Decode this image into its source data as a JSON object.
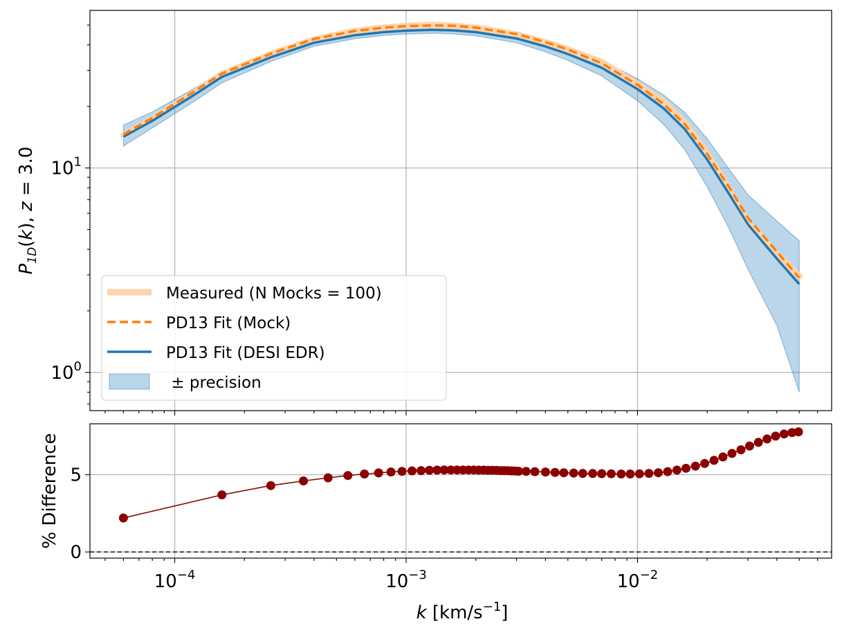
{
  "chart_data": [
    {
      "panel": "top",
      "type": "line",
      "xscale": "log",
      "yscale": "log",
      "xlim": [
        4.3e-05,
        0.069
      ],
      "ylim": [
        0.65,
        59
      ],
      "grid": true,
      "ylabel": "P_1D(k), z = 3.0",
      "xlabel": "",
      "yticks": [
        {
          "base": "10",
          "exp": "0",
          "value": 1
        },
        {
          "base": "10",
          "exp": "1",
          "value": 10
        }
      ],
      "legend_placement": "lower-left",
      "series": [
        {
          "name": "Measured (N Mocks = 100)",
          "style": "thick-light",
          "color": "#ffd3ab",
          "x": [
            6e-05,
            8e-05,
            0.00012,
            0.00016,
            0.00026,
            0.0004,
            0.0006,
            0.0008,
            0.001,
            0.0013,
            0.0016,
            0.002,
            0.003,
            0.004,
            0.005,
            0.007,
            0.01,
            0.013,
            0.016,
            0.02,
            0.025,
            0.03,
            0.04,
            0.05
          ],
          "y": [
            14.4,
            17.4,
            23.2,
            28.8,
            36.0,
            42.5,
            46.8,
            48.6,
            49.5,
            50.2,
            49.5,
            48.6,
            45.0,
            41.2,
            38.0,
            33.0,
            25.7,
            21.0,
            16.6,
            11.8,
            7.8,
            5.4,
            3.8,
            2.95
          ]
        },
        {
          "name": "PD13 Fit (Mock)",
          "style": "dashed",
          "color": "#ff7f0e",
          "x": [
            6e-05,
            8e-05,
            0.00012,
            0.00016,
            0.00026,
            0.0004,
            0.0006,
            0.0008,
            0.001,
            0.0013,
            0.0016,
            0.002,
            0.003,
            0.004,
            0.005,
            0.007,
            0.01,
            0.013,
            0.016,
            0.02,
            0.025,
            0.03,
            0.04,
            0.05
          ],
          "y": [
            14.6,
            17.6,
            23.5,
            29.0,
            36.2,
            42.8,
            46.8,
            48.6,
            49.4,
            49.8,
            49.6,
            48.6,
            45.2,
            41.3,
            38.0,
            32.5,
            25.5,
            20.5,
            16.4,
            11.7,
            8.0,
            5.7,
            3.9,
            2.9
          ]
        },
        {
          "name": "PD13 Fit (DESI EDR)",
          "style": "solid",
          "color": "#1f77b4",
          "x": [
            6e-05,
            8e-05,
            0.00012,
            0.00016,
            0.00026,
            0.0004,
            0.0006,
            0.0008,
            0.001,
            0.0013,
            0.0016,
            0.002,
            0.003,
            0.004,
            0.005,
            0.007,
            0.01,
            0.013,
            0.016,
            0.02,
            0.025,
            0.03,
            0.04,
            0.05
          ],
          "y": [
            14.2,
            17.0,
            22.6,
            27.9,
            34.8,
            41.0,
            44.6,
            46.2,
            47.0,
            47.4,
            47.1,
            46.2,
            43.0,
            39.3,
            36.1,
            30.9,
            24.3,
            19.5,
            15.5,
            11.0,
            7.4,
            5.3,
            3.6,
            2.7
          ]
        },
        {
          "name": "± precision",
          "style": "band",
          "color": "#1f77b4",
          "x": [
            6e-05,
            8e-05,
            0.00012,
            0.00016,
            0.00026,
            0.0004,
            0.0006,
            0.0008,
            0.001,
            0.0013,
            0.0016,
            0.002,
            0.003,
            0.004,
            0.005,
            0.007,
            0.01,
            0.013,
            0.016,
            0.02,
            0.025,
            0.03,
            0.04,
            0.05
          ],
          "y_low": [
            12.8,
            15.7,
            21.0,
            26.1,
            33.2,
            39.4,
            42.9,
            44.5,
            45.2,
            45.6,
            45.3,
            44.3,
            41.0,
            37.0,
            33.6,
            28.2,
            21.3,
            16.3,
            12.3,
            8.1,
            5.0,
            3.2,
            1.7,
            0.8
          ],
          "y_high": [
            16.2,
            18.8,
            24.3,
            29.6,
            36.5,
            42.7,
            46.3,
            47.9,
            48.8,
            49.2,
            48.9,
            48.1,
            45.0,
            41.6,
            38.6,
            33.6,
            27.3,
            22.7,
            18.7,
            13.9,
            9.8,
            7.4,
            5.5,
            4.4
          ]
        }
      ]
    },
    {
      "panel": "bottom",
      "type": "scatter",
      "xscale": "log",
      "yscale": "linear",
      "xlim": [
        4.3e-05,
        0.069
      ],
      "ylim": [
        -0.4,
        8.3
      ],
      "grid": true,
      "ylabel": "% Difference",
      "xlabel": "k [km/s⁻¹]",
      "yticks": [
        0,
        5
      ],
      "xticks": [
        {
          "base": "10",
          "exp": "−4",
          "value": 0.0001
        },
        {
          "base": "10",
          "exp": "−3",
          "value": 0.001
        },
        {
          "base": "10",
          "exp": "−2",
          "value": 0.01
        }
      ],
      "reference_line": {
        "y": 0,
        "style": "dashed",
        "color": "#000000"
      },
      "series": [
        {
          "color": "#8b0000",
          "x": [
            6e-05,
            0.00016,
            0.00026,
            0.00036,
            0.00046,
            0.00056,
            0.00066,
            0.00076,
            0.00086,
            0.00096,
            0.00106,
            0.00116,
            0.00126,
            0.00136,
            0.00146,
            0.00156,
            0.00166,
            0.00176,
            0.00186,
            0.00196,
            0.00206,
            0.00216,
            0.00226,
            0.00236,
            0.00246,
            0.00256,
            0.00266,
            0.00276,
            0.00286,
            0.00296,
            0.00306,
            0.0033,
            0.0036,
            0.004,
            0.0044,
            0.0048,
            0.0053,
            0.0058,
            0.0064,
            0.007,
            0.0077,
            0.0085,
            0.0093,
            0.0102,
            0.0112,
            0.0123,
            0.0135,
            0.0148,
            0.0162,
            0.0178,
            0.0195,
            0.0214,
            0.0234,
            0.0256,
            0.028,
            0.0305,
            0.0333,
            0.0363,
            0.0395,
            0.043,
            0.0465,
            0.0496
          ],
          "y": [
            2.2,
            3.7,
            4.3,
            4.6,
            4.8,
            4.95,
            5.05,
            5.12,
            5.18,
            5.22,
            5.25,
            5.27,
            5.29,
            5.3,
            5.31,
            5.31,
            5.31,
            5.31,
            5.31,
            5.31,
            5.3,
            5.3,
            5.29,
            5.29,
            5.28,
            5.27,
            5.27,
            5.26,
            5.25,
            5.24,
            5.23,
            5.22,
            5.2,
            5.18,
            5.15,
            5.13,
            5.11,
            5.09,
            5.08,
            5.07,
            5.06,
            5.05,
            5.05,
            5.06,
            5.09,
            5.13,
            5.2,
            5.3,
            5.42,
            5.56,
            5.73,
            5.93,
            6.15,
            6.38,
            6.62,
            6.86,
            7.1,
            7.32,
            7.5,
            7.64,
            7.73,
            7.78
          ]
        }
      ]
    }
  ]
}
